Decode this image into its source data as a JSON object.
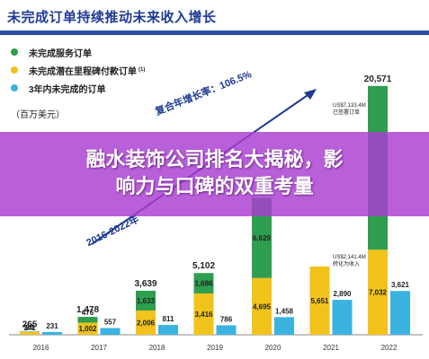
{
  "header": {
    "title": "未完成订单持续推动未来收入增长"
  },
  "legend": {
    "items": [
      {
        "label": "未完成服务订单",
        "color": "#2e9e4f",
        "sup": ""
      },
      {
        "label": "未完成潜在里程碑付款订单",
        "color": "#f2c31b",
        "sup": "(1)"
      },
      {
        "label": "3年内未完成的订单",
        "color": "#3bb3e0",
        "sup": ""
      }
    ]
  },
  "unit_label": "（百万美元）",
  "cagr": {
    "label": "复合年增长率：106.5%"
  },
  "range": {
    "label": "2016-2022年"
  },
  "annotations": {
    "a2022": {
      "line1": "US$7,133.4M",
      "line2": "已签署订单"
    },
    "a2021": {
      "line1": "US$2,141.4M",
      "line2": "转化为收入"
    }
  },
  "banner": {
    "line1": "融水装饰公司排名大揭秘，影",
    "line2": "响力与口碑的双重考量"
  },
  "chart_data": {
    "type": "bar",
    "categories": [
      "2016",
      "2017",
      "2018",
      "2019",
      "2020",
      "2021",
      "2022"
    ],
    "stack_series": [
      {
        "name": "未完成潜在里程碑付款订单",
        "color": "#f2c31b",
        "values": [
          241,
          1002,
          2006,
          3416,
          4695,
          5651,
          7032
        ]
      },
      {
        "name": "未完成服务订单",
        "color": "#2e9e4f",
        "values": [
          24,
          476,
          1633,
          1686,
          6629,
          null,
          null
        ]
      }
    ],
    "stack_totals": [
      265,
      1478,
      3639,
      5102,
      null,
      null,
      20571
    ],
    "side_series": {
      "name": "3年内未完成的订单",
      "color": "#3bb3e0",
      "values": [
        231,
        557,
        811,
        786,
        1458,
        2890,
        3621
      ]
    },
    "ylim": [
      0,
      21000
    ]
  }
}
